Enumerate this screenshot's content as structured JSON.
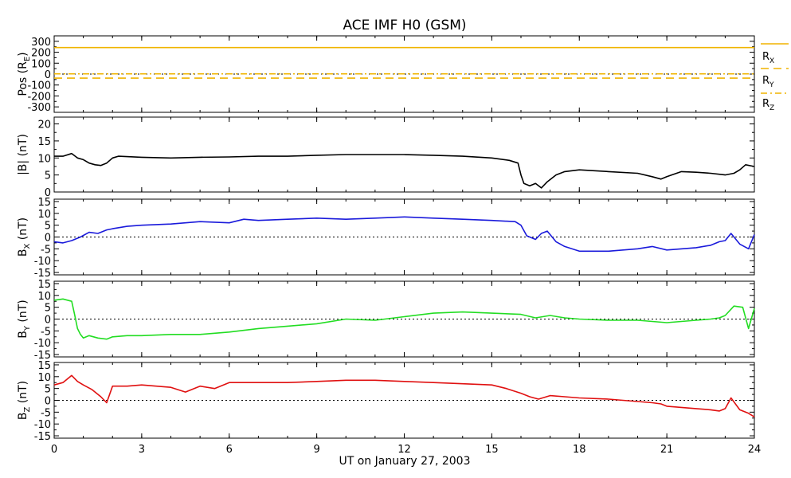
{
  "title": "ACE IMF H0 (GSM)",
  "x_axis_label": "UT on January 27, 2003",
  "x_ticks": [
    "0",
    "3",
    "6",
    "9",
    "12",
    "15",
    "18",
    "21",
    "24"
  ],
  "colors": {
    "position": "#f0b400",
    "bmag": "#000000",
    "bx": "#1a1adb",
    "by": "#22dd22",
    "bz": "#e01010"
  },
  "chart_data": {
    "type": "line",
    "title": "ACE IMF H0 (GSM)",
    "xlabel": "UT on January 27, 2003",
    "xlim": [
      0,
      24
    ],
    "panels": [
      {
        "id": "pos",
        "ylabel": "Pos (RE)",
        "ylim": [
          -350,
          350
        ],
        "yticks": [
          300,
          200,
          100,
          0,
          -100,
          -200,
          -300
        ],
        "zero_line": true,
        "series": [
          {
            "name": "RX",
            "style": "solid",
            "x": [
              0,
              24
            ],
            "y": [
              243,
              243
            ]
          },
          {
            "name": "RY",
            "style": "dashed",
            "x": [
              0,
              24
            ],
            "y": [
              -37,
              -37
            ]
          },
          {
            "name": "RZ",
            "style": "dash-dot",
            "x": [
              0,
              24
            ],
            "y": [
              2,
              2
            ]
          }
        ]
      },
      {
        "id": "bmag",
        "ylabel": "|B| (nT)",
        "ylim": [
          0,
          22
        ],
        "yticks": [
          20,
          15,
          10,
          5,
          0
        ],
        "zero_line": false,
        "series": [
          {
            "name": "|B|",
            "x": [
              0,
              0.3,
              0.6,
              0.8,
              1.0,
              1.2,
              1.4,
              1.6,
              1.8,
              2.0,
              2.2,
              3.0,
              4.0,
              5.0,
              6.0,
              7.0,
              8.0,
              9.0,
              10.0,
              11.0,
              12.0,
              13.0,
              14.0,
              15.0,
              15.6,
              15.9,
              16.0,
              16.1,
              16.3,
              16.5,
              16.7,
              16.9,
              17.2,
              17.5,
              18.0,
              19.0,
              20.0,
              20.5,
              20.8,
              21.0,
              21.5,
              22.0,
              22.5,
              23.0,
              23.3,
              23.5,
              23.7,
              24.0
            ],
            "y": [
              10.5,
              10.5,
              11.3,
              10.0,
              9.5,
              8.5,
              8.0,
              7.8,
              8.5,
              10.0,
              10.5,
              10.2,
              10.0,
              10.2,
              10.3,
              10.5,
              10.5,
              10.8,
              11.0,
              11.0,
              11.0,
              10.8,
              10.5,
              10.0,
              9.3,
              8.5,
              5.0,
              2.5,
              1.8,
              2.5,
              1.2,
              3.0,
              5.0,
              6.0,
              6.5,
              6.0,
              5.5,
              4.5,
              3.8,
              4.5,
              6.0,
              5.8,
              5.5,
              5.0,
              5.5,
              6.5,
              8.0,
              7.5
            ]
          }
        ]
      },
      {
        "id": "bx",
        "ylabel": "BX (nT)",
        "ylim": [
          -16,
          16
        ],
        "yticks": [
          15,
          10,
          5,
          0,
          -5,
          -10,
          -15
        ],
        "zero_line": true,
        "series": [
          {
            "name": "BX",
            "x": [
              0,
              0.3,
              0.6,
              0.9,
              1.2,
              1.5,
              1.8,
              2.0,
              2.5,
              3.0,
              4.0,
              5.0,
              6.0,
              6.5,
              7.0,
              8.0,
              9.0,
              10.0,
              11.0,
              12.0,
              13.0,
              14.0,
              15.0,
              15.8,
              16.0,
              16.2,
              16.5,
              16.7,
              16.9,
              17.2,
              17.5,
              18.0,
              19.0,
              20.0,
              20.5,
              21.0,
              22.0,
              22.5,
              22.8,
              23.0,
              23.2,
              23.5,
              23.8,
              24.0
            ],
            "y": [
              -2.0,
              -2.5,
              -1.5,
              0.0,
              2.0,
              1.5,
              3.0,
              3.5,
              4.5,
              5.0,
              5.5,
              6.5,
              6.0,
              7.5,
              7.0,
              7.5,
              8.0,
              7.5,
              8.0,
              8.5,
              8.0,
              7.5,
              7.0,
              6.5,
              5.0,
              0.5,
              -1.0,
              1.5,
              2.5,
              -2.0,
              -4.0,
              -6.0,
              -6.0,
              -5.0,
              -4.0,
              -5.5,
              -4.5,
              -3.5,
              -2.0,
              -1.5,
              1.5,
              -3.0,
              -5.0,
              1.0
            ]
          }
        ]
      },
      {
        "id": "by",
        "ylabel": "BY (nT)",
        "ylim": [
          -16,
          16
        ],
        "yticks": [
          15,
          10,
          5,
          0,
          -5,
          -10,
          -15
        ],
        "zero_line": true,
        "series": [
          {
            "name": "BY",
            "x": [
              0,
              0.3,
              0.6,
              0.7,
              0.8,
              0.9,
              1.0,
              1.2,
              1.5,
              1.8,
              2.0,
              2.5,
              3.0,
              4.0,
              5.0,
              6.0,
              7.0,
              8.0,
              9.0,
              10.0,
              11.0,
              12.0,
              13.0,
              14.0,
              15.0,
              16.0,
              16.5,
              17.0,
              17.5,
              18.0,
              19.0,
              20.0,
              20.5,
              21.0,
              22.0,
              22.5,
              22.8,
              23.0,
              23.3,
              23.6,
              23.8,
              24.0
            ],
            "y": [
              8.0,
              8.5,
              7.5,
              2.0,
              -4.0,
              -6.5,
              -8.0,
              -7.0,
              -8.0,
              -8.5,
              -7.5,
              -7.0,
              -7.0,
              -6.5,
              -6.5,
              -5.5,
              -4.0,
              -3.0,
              -2.0,
              0.0,
              -0.5,
              1.0,
              2.5,
              3.0,
              2.5,
              2.0,
              0.5,
              1.5,
              0.5,
              0.0,
              -0.5,
              -0.5,
              -1.0,
              -1.5,
              -0.5,
              0.0,
              0.5,
              1.5,
              5.5,
              5.0,
              -4.0,
              4.5
            ]
          }
        ]
      },
      {
        "id": "bz",
        "ylabel": "BZ (nT)",
        "ylim": [
          -16,
          16
        ],
        "yticks": [
          15,
          10,
          5,
          0,
          -5,
          -10,
          -15
        ],
        "zero_line": true,
        "series": [
          {
            "name": "BZ",
            "x": [
              0,
              0.3,
              0.6,
              0.8,
              1.0,
              1.3,
              1.6,
              1.8,
              2.0,
              2.5,
              3.0,
              3.5,
              4.0,
              4.5,
              5.0,
              5.5,
              6.0,
              7.0,
              8.0,
              9.0,
              10.0,
              11.0,
              12.0,
              13.0,
              14.0,
              15.0,
              15.5,
              16.0,
              16.3,
              16.6,
              17.0,
              17.5,
              18.0,
              19.0,
              20.0,
              20.5,
              20.8,
              21.0,
              21.5,
              22.0,
              22.5,
              22.8,
              23.0,
              23.2,
              23.5,
              23.8,
              24.0
            ],
            "y": [
              6.5,
              7.5,
              10.5,
              8.0,
              6.5,
              4.5,
              1.5,
              -1.0,
              6.0,
              6.0,
              6.5,
              6.0,
              5.5,
              3.5,
              6.0,
              5.0,
              7.5,
              7.5,
              7.5,
              8.0,
              8.5,
              8.5,
              8.0,
              7.5,
              7.0,
              6.5,
              5.0,
              3.0,
              1.5,
              0.5,
              2.0,
              1.5,
              1.0,
              0.5,
              -0.5,
              -1.0,
              -1.5,
              -2.5,
              -3.0,
              -3.5,
              -4.0,
              -4.5,
              -3.5,
              1.0,
              -4.0,
              -5.5,
              -7.0
            ]
          }
        ]
      }
    ],
    "legend": {
      "placement": "right",
      "entries": [
        "RX",
        "RY",
        "RZ"
      ]
    }
  }
}
